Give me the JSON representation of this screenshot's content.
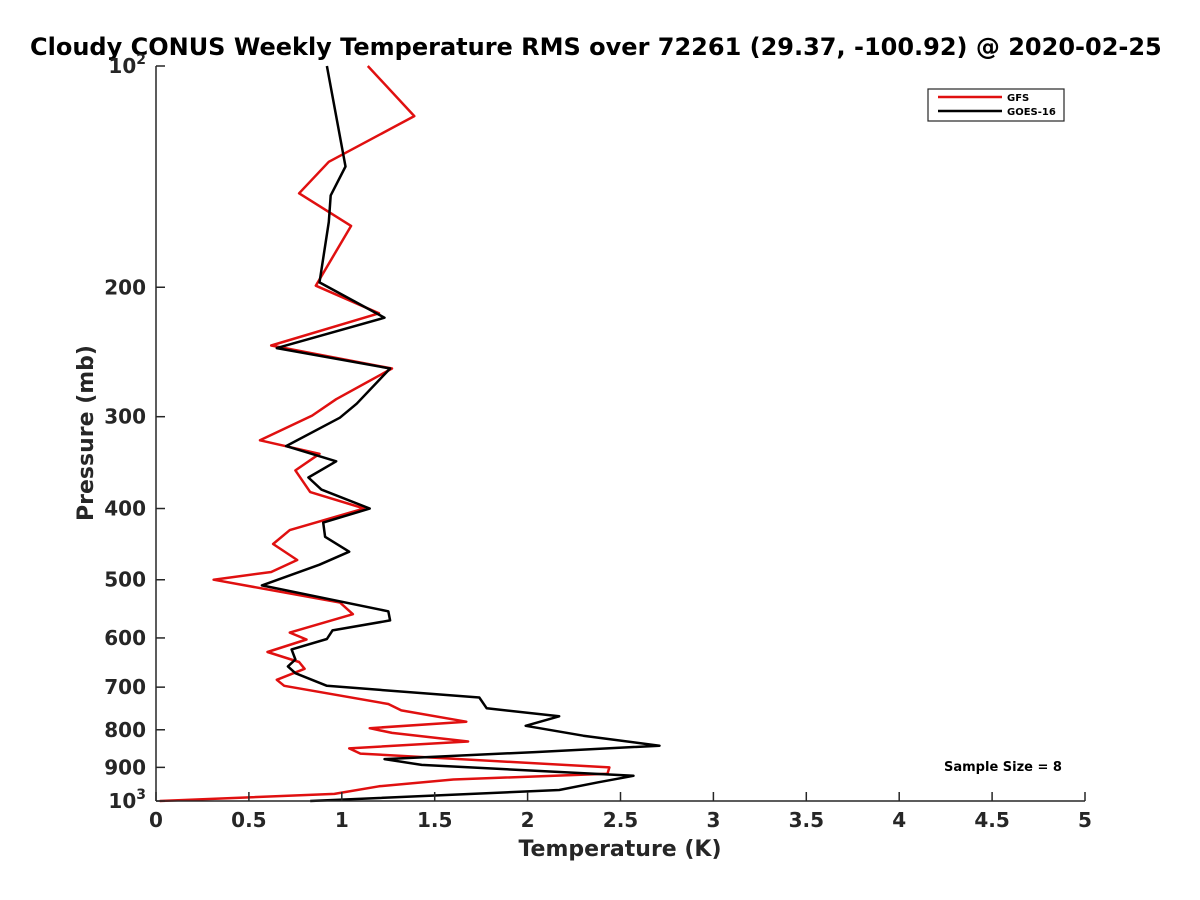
{
  "chart_data": {
    "type": "line",
    "title": "Cloudy CONUS Weekly Temperature RMS over 72261 (29.37, -100.92) @ 2020-02-25",
    "xlabel": "Temperature (K)",
    "ylabel": "Pressure (mb)",
    "xlim": [
      0,
      5
    ],
    "ylim": [
      100,
      1000
    ],
    "y_scale": "log",
    "y_reversed": true,
    "grid": false,
    "legend_position": "top-right",
    "annotation": "Sample Size = 8",
    "x_ticks": [
      {
        "value": 0,
        "label": "0"
      },
      {
        "value": 0.5,
        "label": "0.5"
      },
      {
        "value": 1,
        "label": "1"
      },
      {
        "value": 1.5,
        "label": "1.5"
      },
      {
        "value": 2,
        "label": "2"
      },
      {
        "value": 2.5,
        "label": "2.5"
      },
      {
        "value": 3,
        "label": "3"
      },
      {
        "value": 3.5,
        "label": "3.5"
      },
      {
        "value": 4,
        "label": "4"
      },
      {
        "value": 4.5,
        "label": "4.5"
      },
      {
        "value": 5,
        "label": "5"
      }
    ],
    "y_ticks": [
      {
        "value": 100,
        "label": "10",
        "sup": "2"
      },
      {
        "value": 200,
        "label": "200",
        "sup": ""
      },
      {
        "value": 300,
        "label": "300",
        "sup": ""
      },
      {
        "value": 400,
        "label": "400",
        "sup": ""
      },
      {
        "value": 500,
        "label": "500",
        "sup": ""
      },
      {
        "value": 600,
        "label": "600",
        "sup": ""
      },
      {
        "value": 700,
        "label": "700",
        "sup": ""
      },
      {
        "value": 800,
        "label": "800",
        "sup": ""
      },
      {
        "value": 900,
        "label": "900",
        "sup": ""
      },
      {
        "value": 1000,
        "label": "10",
        "sup": "3"
      }
    ],
    "series": [
      {
        "name": "GFS",
        "color": "#e01010",
        "points": [
          [
            1.14,
            100
          ],
          [
            1.39,
            117
          ],
          [
            0.93,
            135
          ],
          [
            0.77,
            149
          ],
          [
            1.05,
            165
          ],
          [
            0.86,
            199
          ],
          [
            1.2,
            217
          ],
          [
            0.62,
            240
          ],
          [
            1.27,
            258
          ],
          [
            0.97,
            284
          ],
          [
            0.84,
            299
          ],
          [
            0.56,
            323
          ],
          [
            0.88,
            337
          ],
          [
            0.75,
            355
          ],
          [
            0.83,
            380
          ],
          [
            1.12,
            400
          ],
          [
            0.72,
            428
          ],
          [
            0.63,
            447
          ],
          [
            0.76,
            470
          ],
          [
            0.62,
            488
          ],
          [
            0.31,
            500
          ],
          [
            0.99,
            537
          ],
          [
            1.06,
            557
          ],
          [
            0.72,
            590
          ],
          [
            0.81,
            603
          ],
          [
            0.6,
            627
          ],
          [
            0.77,
            647
          ],
          [
            0.8,
            661
          ],
          [
            0.65,
            684
          ],
          [
            0.69,
            697
          ],
          [
            1.25,
            738
          ],
          [
            1.32,
            753
          ],
          [
            1.67,
            780
          ],
          [
            1.15,
            796
          ],
          [
            1.27,
            808
          ],
          [
            1.68,
            830
          ],
          [
            1.04,
            848
          ],
          [
            1.1,
            862
          ],
          [
            2.44,
            900
          ],
          [
            2.43,
            918
          ],
          [
            1.6,
            935
          ],
          [
            1.2,
            955
          ],
          [
            0.96,
            978
          ],
          [
            0.02,
            1000
          ]
        ]
      },
      {
        "name": "GOES-16",
        "color": "#000000",
        "points": [
          [
            0.92,
            100
          ],
          [
            1.02,
            137
          ],
          [
            0.94,
            150
          ],
          [
            0.93,
            163
          ],
          [
            0.88,
            197
          ],
          [
            1.23,
            220
          ],
          [
            0.65,
            242
          ],
          [
            1.26,
            258
          ],
          [
            1.08,
            288
          ],
          [
            0.99,
            301
          ],
          [
            0.7,
            329
          ],
          [
            0.97,
            345
          ],
          [
            0.82,
            363
          ],
          [
            0.89,
            377
          ],
          [
            1.15,
            400
          ],
          [
            0.9,
            418
          ],
          [
            0.91,
            437
          ],
          [
            1.04,
            458
          ],
          [
            0.88,
            477
          ],
          [
            0.57,
            509
          ],
          [
            1.25,
            552
          ],
          [
            1.26,
            568
          ],
          [
            0.95,
            586
          ],
          [
            0.92,
            602
          ],
          [
            0.73,
            622
          ],
          [
            0.75,
            642
          ],
          [
            0.71,
            656
          ],
          [
            0.75,
            670
          ],
          [
            0.92,
            697
          ],
          [
            1.74,
            723
          ],
          [
            1.78,
            748
          ],
          [
            2.17,
            767
          ],
          [
            1.99,
            790
          ],
          [
            2.3,
            815
          ],
          [
            2.71,
            841
          ],
          [
            2.04,
            858
          ],
          [
            1.23,
            877
          ],
          [
            1.43,
            893
          ],
          [
            2.57,
            924
          ],
          [
            2.38,
            943
          ],
          [
            2.17,
            966
          ],
          [
            0.83,
            1000
          ]
        ]
      }
    ]
  }
}
